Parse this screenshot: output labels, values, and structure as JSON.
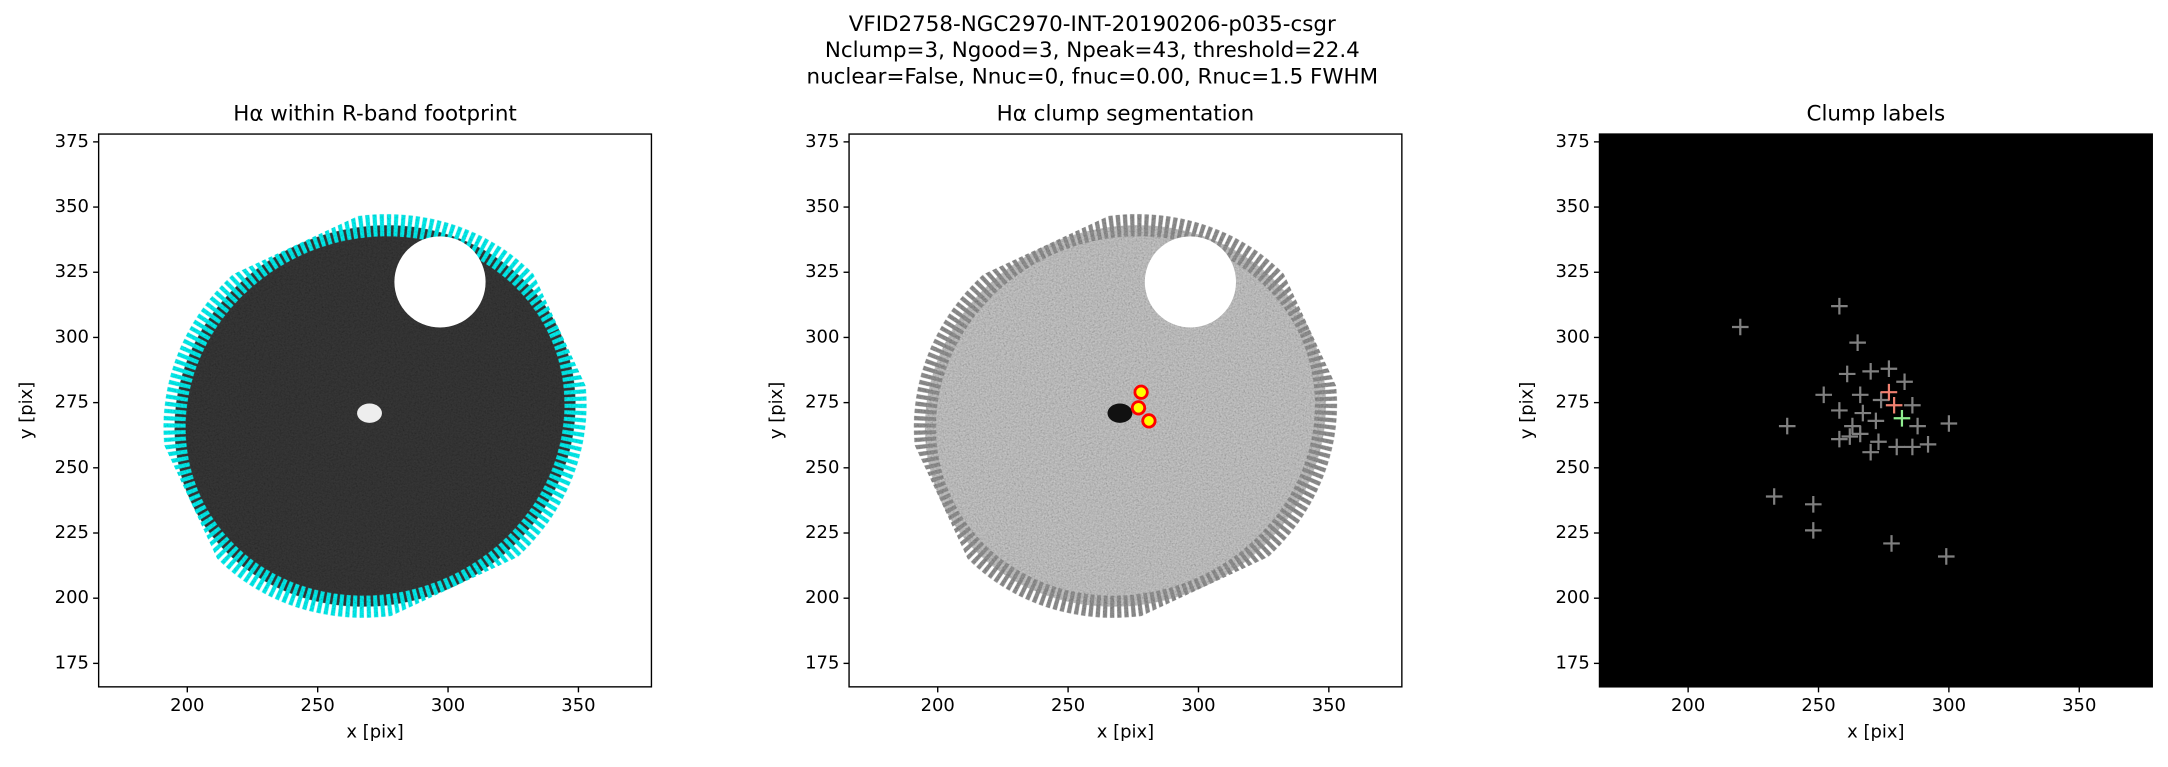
{
  "title": [
    "VFID2758-NGC2970-INT-20190206-p035-csgr",
    "Nclump=3, Ngood=3, Npeak=43, threshold=22.4",
    "nuclear=False, Nnuc=0, fnuc=0.00, Rnuc=1.5 FWHM"
  ],
  "chart_data": [
    {
      "type": "image",
      "title": "Hα within R-band footprint",
      "xlabel": "x [pix]",
      "ylabel": "y [pix]",
      "xlim": [
        166,
        378
      ],
      "ylim": [
        166,
        378
      ],
      "xticks": [
        200,
        250,
        300,
        350
      ],
      "yticks": [
        175,
        200,
        225,
        250,
        275,
        300,
        325,
        350,
        375
      ]
    },
    {
      "type": "image",
      "title": "Hα clump segmentation",
      "xlabel": "x [pix]",
      "ylabel": "y [pix]",
      "xlim": [
        166,
        378
      ],
      "ylim": [
        166,
        378
      ],
      "xticks": [
        200,
        250,
        300,
        350
      ],
      "yticks": [
        175,
        200,
        225,
        250,
        275,
        300,
        325,
        350,
        375
      ],
      "series": [
        {
          "marker": "o",
          "color": "#ff0000",
          "facecolor": "#ffff00",
          "x": [
            281,
            277,
            278
          ],
          "values": [
            268,
            273,
            279
          ]
        }
      ]
    },
    {
      "type": "image",
      "title": "Clump labels",
      "xlabel": "x [pix]",
      "ylabel": "y [pix]",
      "xlim": [
        166,
        378
      ],
      "ylim": [
        166,
        378
      ],
      "xticks": [
        200,
        250,
        300,
        350
      ],
      "yticks": [
        175,
        200,
        225,
        250,
        275,
        300,
        325,
        350,
        375
      ],
      "series": [
        {
          "marker": "+",
          "color": "#808080",
          "x": [
            220,
            258,
            265,
            261,
            270,
            277,
            283,
            252,
            266,
            274,
            286,
            258,
            267,
            272,
            263,
            288,
            238,
            300,
            258,
            262,
            266,
            273,
            280,
            286,
            292,
            270,
            233,
            248,
            248,
            278,
            299
          ],
          "values": [
            304,
            312,
            298,
            286,
            287,
            288,
            283,
            278,
            278,
            276,
            274,
            272,
            271,
            268,
            266,
            266,
            266,
            267,
            261,
            262,
            263,
            260,
            258,
            258,
            259,
            256,
            239,
            236,
            226,
            221,
            216
          ]
        },
        {
          "marker": "+",
          "color": "#f08070",
          "x": [
            277,
            279
          ],
          "values": [
            279,
            274
          ]
        },
        {
          "marker": "+",
          "color": "#90ee90",
          "x": [
            282
          ],
          "values": [
            269
          ]
        }
      ]
    }
  ]
}
